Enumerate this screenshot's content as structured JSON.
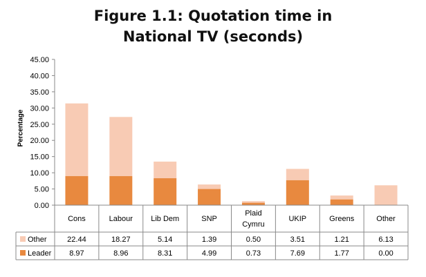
{
  "chart_data": {
    "type": "bar",
    "stacked": true,
    "title": "Figure 1.1: Quotation time in National TV (seconds)",
    "title_lines": [
      "Figure 1.1: Quotation time in",
      "National TV (seconds)"
    ],
    "ylabel": "Percentage",
    "xlabel": "",
    "ylim": [
      0,
      45
    ],
    "yticks": [
      "0.00",
      "5.00",
      "10.00",
      "15.00",
      "20.00",
      "25.00",
      "30.00",
      "35.00",
      "40.00",
      "45.00"
    ],
    "categories": [
      [
        "Cons"
      ],
      [
        "Labour"
      ],
      [
        "Lib Dem"
      ],
      [
        "SNP"
      ],
      [
        "Plaid",
        "Cymru"
      ],
      [
        "UKIP"
      ],
      [
        "Greens"
      ],
      [
        "Other"
      ]
    ],
    "series": [
      {
        "name": "Leader",
        "color": "#e8893f",
        "values": [
          8.97,
          8.96,
          8.31,
          4.99,
          0.73,
          7.69,
          1.77,
          0.0
        ],
        "labels": [
          "8.97",
          "8.96",
          "8.31",
          "4.99",
          "0.73",
          "7.69",
          "1.77",
          "0.00"
        ]
      },
      {
        "name": "Other",
        "color": "#f8cbb4",
        "values": [
          22.44,
          18.27,
          5.14,
          1.39,
          0.5,
          3.51,
          1.21,
          6.13
        ],
        "labels": [
          "22.44",
          "18.27",
          "5.14",
          "1.39",
          "0.50",
          "3.51",
          "1.21",
          "6.13"
        ]
      }
    ],
    "table_row_order": [
      "Other",
      "Leader"
    ],
    "grid": false,
    "legend": "data-table"
  }
}
